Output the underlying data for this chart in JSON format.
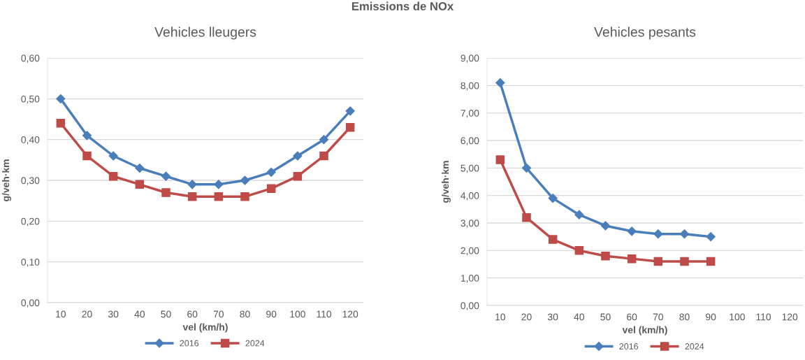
{
  "chart_data": [
    {
      "type": "line",
      "title": "Vehicles lleugers",
      "xlabel": "vel (km/h)",
      "ylabel": "g/veh·km",
      "annotations": [
        "Emissions de NOx"
      ],
      "categories": [
        "10",
        "20",
        "30",
        "40",
        "50",
        "60",
        "70",
        "80",
        "90",
        "100",
        "110",
        "120"
      ],
      "series": [
        {
          "name": "2016",
          "color": "#4a7ebb",
          "marker": "diamond",
          "values": [
            0.5,
            0.41,
            0.36,
            0.33,
            0.31,
            0.29,
            0.29,
            0.3,
            0.32,
            0.36,
            0.4,
            0.47
          ]
        },
        {
          "name": "2024",
          "color": "#be4b48",
          "marker": "square",
          "values": [
            0.44,
            0.36,
            0.31,
            0.29,
            0.27,
            0.26,
            0.26,
            0.26,
            0.28,
            0.31,
            0.36,
            0.43
          ]
        }
      ],
      "ylim": [
        0,
        0.6
      ],
      "yticks": [
        {
          "value": 0,
          "label": "0,00"
        },
        {
          "value": 0.1,
          "label": "0,10"
        },
        {
          "value": 0.2,
          "label": "0,20"
        },
        {
          "value": 0.3,
          "label": "0,30"
        },
        {
          "value": 0.4,
          "label": "0,40"
        },
        {
          "value": 0.5,
          "label": "0,50"
        },
        {
          "value": 0.6,
          "label": "0,60"
        }
      ],
      "grid": "y",
      "legend": "bottom",
      "line_style": "solid"
    },
    {
      "type": "line",
      "title": "Vehicles pesants",
      "xlabel": "vel (km/h)",
      "ylabel": "g/veh·km",
      "categories": [
        "10",
        "20",
        "30",
        "40",
        "50",
        "60",
        "70",
        "80",
        "90",
        "100",
        "110",
        "120"
      ],
      "series": [
        {
          "name": "2016",
          "color": "#4a7ebb",
          "marker": "diamond",
          "values": [
            8.1,
            5.0,
            3.9,
            3.3,
            2.9,
            2.7,
            2.6,
            2.6,
            2.5,
            null,
            null,
            null
          ]
        },
        {
          "name": "2024",
          "color": "#be4b48",
          "marker": "square",
          "values": [
            5.3,
            3.2,
            2.4,
            2.0,
            1.8,
            1.7,
            1.6,
            1.6,
            1.6,
            null,
            null,
            null
          ]
        }
      ],
      "ylim": [
        0,
        9
      ],
      "yticks": [
        {
          "value": 0,
          "label": "0,00"
        },
        {
          "value": 1,
          "label": "1,00"
        },
        {
          "value": 2,
          "label": "2,00"
        },
        {
          "value": 3,
          "label": "3,00"
        },
        {
          "value": 4,
          "label": "4,00"
        },
        {
          "value": 5,
          "label": "5,00"
        },
        {
          "value": 6,
          "label": "6,00"
        },
        {
          "value": 7,
          "label": "7,00"
        },
        {
          "value": 8,
          "label": "8,00"
        },
        {
          "value": 9,
          "label": "9,00"
        }
      ],
      "grid": "y",
      "legend": "bottom",
      "line_style": "solid"
    }
  ]
}
